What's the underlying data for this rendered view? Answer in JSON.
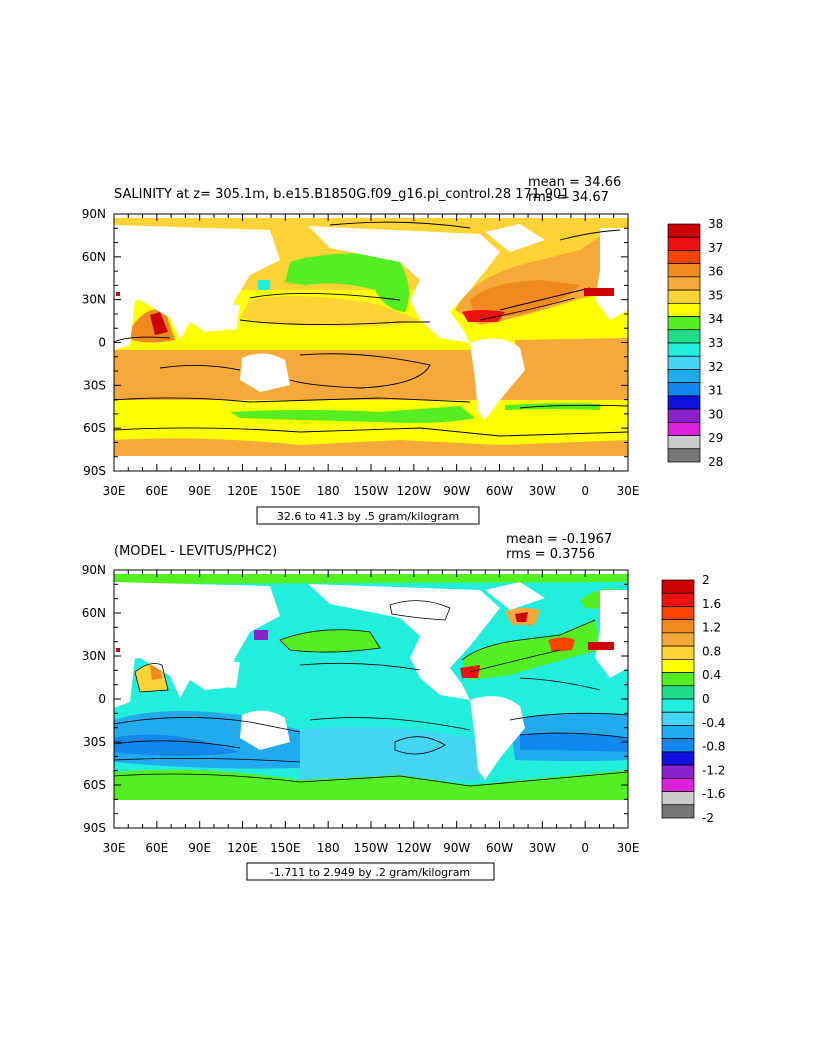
{
  "colors": {
    "land": "#ffffff",
    "contour": "#000000"
  },
  "lon_labels": [
    "30E",
    "60E",
    "90E",
    "120E",
    "150E",
    "180",
    "150W",
    "120W",
    "90W",
    "60W",
    "30W",
    "0",
    "30E"
  ],
  "lat_labels": [
    "90N",
    "60N",
    "30N",
    "0",
    "30S",
    "60S",
    "90S"
  ],
  "panels": [
    {
      "title": "SALINITY at z= 305.1m, b.e15.B1850G.f09_g16.pi_control.28 171-901",
      "mean_text": "mean = 34.66",
      "rms_text": "rms = 34.67",
      "range_text": "32.6 to 41.3 by .5 gram/kilogram",
      "colorbar": {
        "labels": [
          "38",
          "37",
          "36",
          "35",
          "34",
          "33",
          "32",
          "31",
          "30",
          "29",
          "28"
        ],
        "colors": [
          "#cc0000",
          "#ee1111",
          "#ff4400",
          "#f08a1e",
          "#f5a93a",
          "#fdd335",
          "#ffff00",
          "#55ee22",
          "#22dd88",
          "#22eedd",
          "#44d5f5",
          "#22aaee",
          "#1188ee",
          "#1111dd",
          "#8a22cc",
          "#dd22dd",
          "#cccccc",
          "#777777"
        ]
      }
    },
    {
      "title": "(MODEL - LEVITUS/PHC2)",
      "mean_text": "mean = -0.1967",
      "rms_text": "rms = 0.3756",
      "range_text": "-1.711 to 2.949 by .2 gram/kilogram",
      "colorbar": {
        "labels": [
          "2",
          "1.6",
          "1.2",
          "0.8",
          "0.4",
          "0",
          "-0.4",
          "-0.8",
          "-1.2",
          "-1.6",
          "-2"
        ],
        "colors": [
          "#cc0000",
          "#ee1111",
          "#ff4400",
          "#f08a1e",
          "#f5a93a",
          "#fdd335",
          "#ffff00",
          "#55ee22",
          "#22dd88",
          "#22eedd",
          "#44d5f5",
          "#22aaee",
          "#1188ee",
          "#1111dd",
          "#8a22cc",
          "#dd22dd",
          "#cccccc",
          "#777777"
        ]
      }
    }
  ]
}
